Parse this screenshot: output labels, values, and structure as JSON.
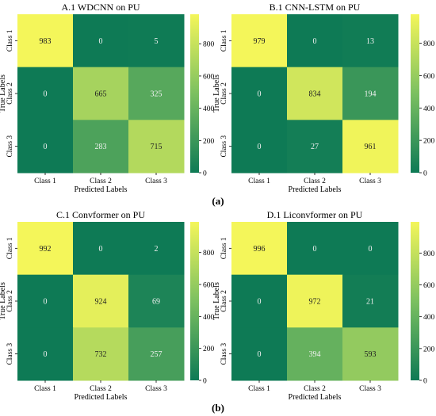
{
  "panel_labels": [
    "(a)",
    "(b)"
  ],
  "color_scale": {
    "low": "#0e7a55",
    "mid": "#7cc060",
    "high": "#f4f65a"
  },
  "chart_data": [
    {
      "type": "heatmap",
      "title": "A.1 WDCNN on PU",
      "xlabel": "Predicted Labels",
      "ylabel": "True Labels",
      "x_categories": [
        "Class 1",
        "Class 2",
        "Class 3"
      ],
      "y_categories": [
        "Class 1",
        "Class 2",
        "Class 3"
      ],
      "values": [
        [
          983,
          0,
          5
        ],
        [
          0,
          665,
          325
        ],
        [
          0,
          283,
          715
        ]
      ],
      "colorbar": {
        "range": [
          0,
          983
        ],
        "ticks": [
          0,
          200,
          400,
          600,
          800
        ]
      }
    },
    {
      "type": "heatmap",
      "title": "B.1 CNN-LSTM on PU",
      "xlabel": "Predicted Labels",
      "ylabel": "True Labels",
      "x_categories": [
        "Class 1",
        "Class 2",
        "Class 3"
      ],
      "y_categories": [
        "Class 1",
        "Class 2",
        "Class 3"
      ],
      "values": [
        [
          979,
          0,
          13
        ],
        [
          0,
          834,
          194
        ],
        [
          0,
          27,
          961
        ]
      ],
      "colorbar": {
        "range": [
          0,
          979
        ],
        "ticks": [
          0,
          200,
          400,
          600,
          800
        ]
      }
    },
    {
      "type": "heatmap",
      "title": "C.1 Convformer on PU",
      "xlabel": "Predicted Labels",
      "ylabel": "True Labels",
      "x_categories": [
        "Class 1",
        "Class 2",
        "Class 3"
      ],
      "y_categories": [
        "Class 1",
        "Class 2",
        "Class 3"
      ],
      "values": [
        [
          992,
          0,
          2
        ],
        [
          0,
          924,
          69
        ],
        [
          0,
          732,
          257
        ]
      ],
      "colorbar": {
        "range": [
          0,
          992
        ],
        "ticks": [
          0,
          200,
          400,
          600,
          800
        ]
      }
    },
    {
      "type": "heatmap",
      "title": "D.1 Liconvformer on PU",
      "xlabel": "Predicted Labels",
      "ylabel": "True Labels",
      "x_categories": [
        "Class 1",
        "Class 2",
        "Class 3"
      ],
      "y_categories": [
        "Class 1",
        "Class 2",
        "Class 3"
      ],
      "values": [
        [
          996,
          0,
          0
        ],
        [
          0,
          972,
          21
        ],
        [
          0,
          394,
          593
        ]
      ],
      "colorbar": {
        "range": [
          0,
          996
        ],
        "ticks": [
          0,
          200,
          400,
          600,
          800
        ]
      }
    }
  ]
}
